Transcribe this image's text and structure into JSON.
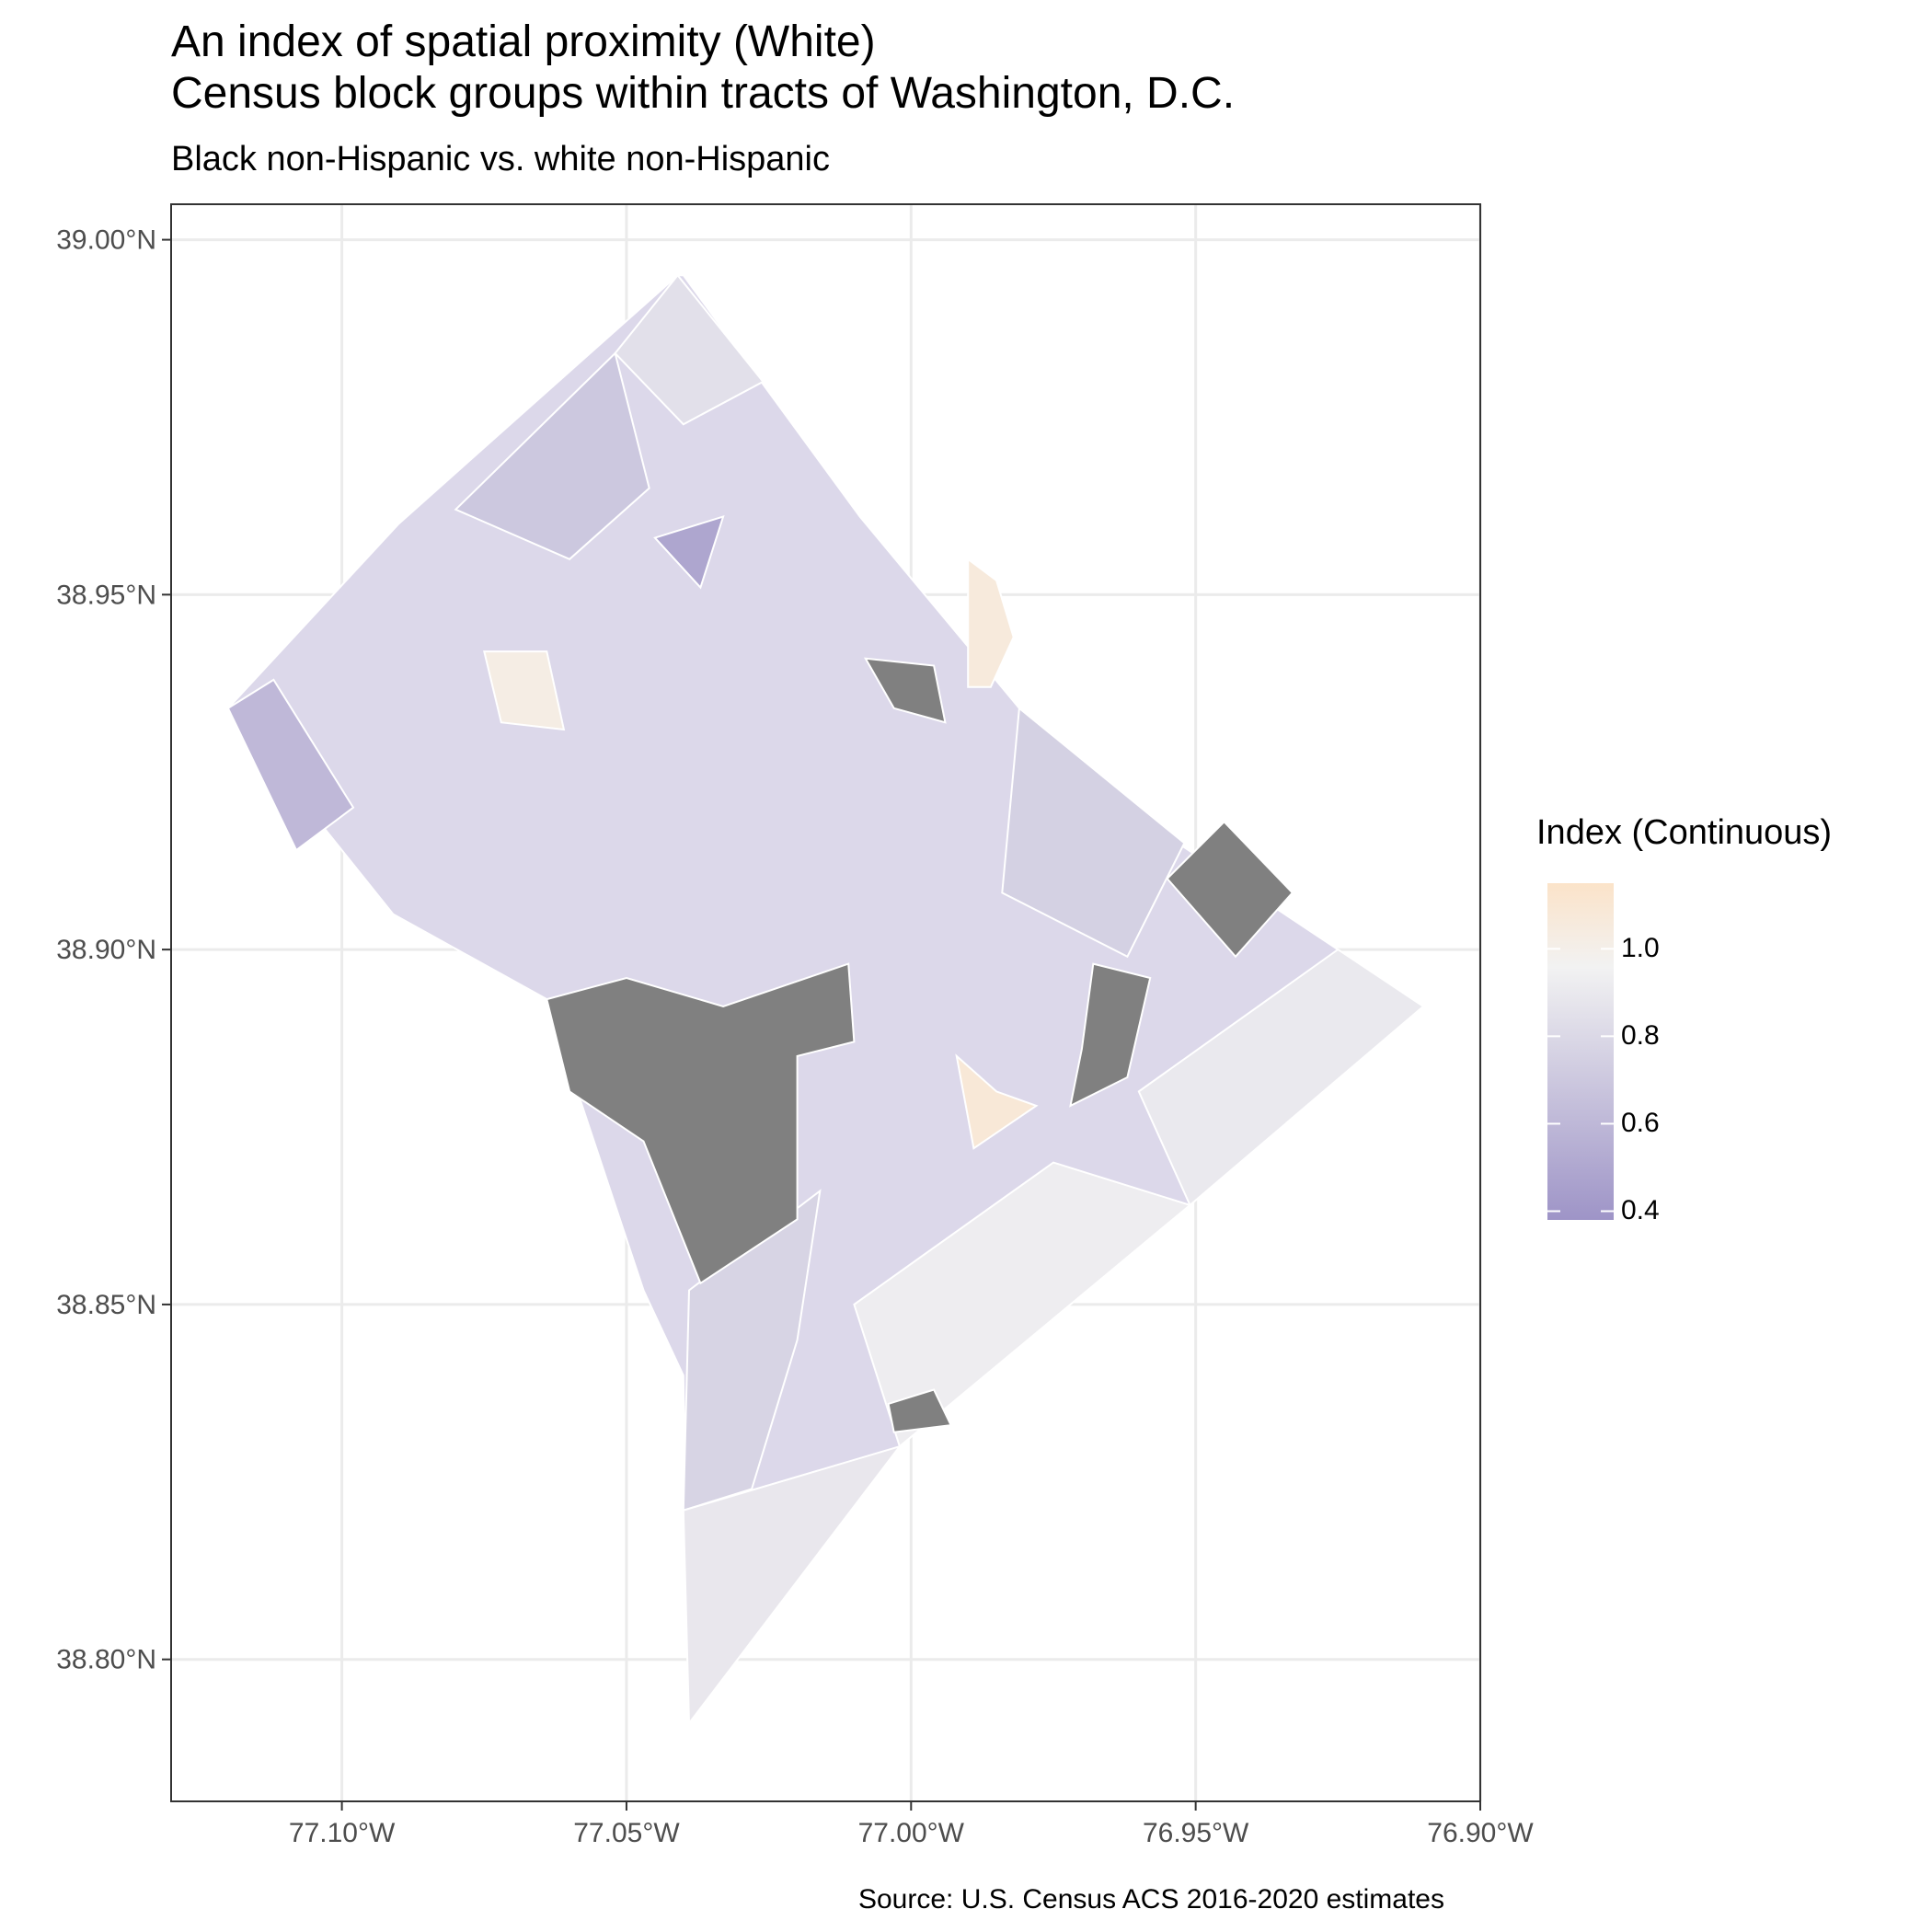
{
  "title_line1": "An index of spatial proximity (White)",
  "title_line2": "Census block groups within tracts of Washington, D.C.",
  "subtitle": "Black non-Hispanic vs. white non-Hispanic",
  "caption": "Source: U.S. Census ACS 2016-2020 estimates",
  "legend": {
    "title": "Index (Continuous)",
    "labels": [
      "1.0",
      "0.8",
      "0.6",
      "0.4"
    ],
    "label_values": [
      1.0,
      0.8,
      0.6,
      0.4
    ],
    "range": [
      0.38,
      1.15
    ],
    "colors": {
      "low": "#9e94c7",
      "mid": "#f2f2f2",
      "high": "#fbe3c9",
      "na": "#808080"
    }
  },
  "axes": {
    "x_ticks": [
      "77.10°W",
      "77.05°W",
      "77.00°W",
      "76.95°W",
      "76.90°W"
    ],
    "x_values": [
      -77.1,
      -77.05,
      -77.0,
      -76.95,
      -76.9
    ],
    "y_ticks": [
      "39.00°N",
      "38.95°N",
      "38.90°N",
      "38.85°N",
      "38.80°N"
    ],
    "y_values": [
      39.0,
      38.95,
      38.9,
      38.85,
      38.8
    ],
    "xlim": [
      -77.13,
      -76.9
    ],
    "ylim": [
      38.78,
      39.005
    ],
    "grid": true
  },
  "chart_data": {
    "type": "choropleth",
    "region": "Washington, D.C. census block groups",
    "boundary": [
      [
        -77.04,
        38.995
      ],
      [
        -77.009,
        38.961
      ],
      [
        -76.981,
        38.934
      ],
      [
        -76.97,
        38.924
      ],
      [
        -76.91,
        38.892
      ],
      [
        -76.951,
        38.864
      ],
      [
        -77.002,
        38.83
      ],
      [
        -77.039,
        38.791
      ],
      [
        -77.04,
        38.84
      ],
      [
        -77.047,
        38.852
      ],
      [
        -77.064,
        38.893
      ],
      [
        -77.091,
        38.905
      ],
      [
        -77.12,
        38.934
      ],
      [
        -77.09,
        38.96
      ],
      [
        -77.041,
        38.995
      ]
    ],
    "zones": [
      {
        "name": "northwest-tip",
        "value": 0.88,
        "poly": [
          [
            -77.041,
            38.995
          ],
          [
            -77.052,
            38.984
          ],
          [
            -77.04,
            38.974
          ],
          [
            -77.026,
            38.98
          ]
        ]
      },
      {
        "name": "upper-northwest",
        "value": 0.72,
        "poly": [
          [
            -77.052,
            38.984
          ],
          [
            -77.08,
            38.962
          ],
          [
            -77.06,
            38.955
          ],
          [
            -77.046,
            38.965
          ]
        ]
      },
      {
        "name": "west-arm",
        "value": 0.62,
        "poly": [
          [
            -77.12,
            38.934
          ],
          [
            -77.112,
            38.938
          ],
          [
            -77.098,
            38.92
          ],
          [
            -77.108,
            38.914
          ]
        ]
      },
      {
        "name": "dark-northwest",
        "value": 0.5,
        "poly": [
          [
            -77.045,
            38.958
          ],
          [
            -77.033,
            38.961
          ],
          [
            -77.037,
            38.951
          ]
        ]
      },
      {
        "name": "beige-north",
        "value": 1.08,
        "poly": [
          [
            -76.99,
            38.955
          ],
          [
            -76.985,
            38.952
          ],
          [
            -76.982,
            38.944
          ],
          [
            -76.986,
            38.937
          ],
          [
            -76.99,
            38.937
          ]
        ]
      },
      {
        "name": "beige-northwest",
        "value": 1.05,
        "poly": [
          [
            -77.075,
            38.942
          ],
          [
            -77.064,
            38.942
          ],
          [
            -77.061,
            38.931
          ],
          [
            -77.072,
            38.932
          ]
        ]
      },
      {
        "name": "east-top",
        "value": 0.78,
        "poly": [
          [
            -76.981,
            38.934
          ],
          [
            -76.952,
            38.915
          ],
          [
            -76.962,
            38.899
          ],
          [
            -76.984,
            38.908
          ]
        ]
      },
      {
        "name": "beige-center",
        "value": 1.1,
        "poly": [
          [
            -76.992,
            38.885
          ],
          [
            -76.985,
            38.88
          ],
          [
            -76.978,
            38.878
          ],
          [
            -76.989,
            38.872
          ]
        ]
      },
      {
        "name": "south-west-bank",
        "value": 0.8,
        "poly": [
          [
            -77.039,
            38.852
          ],
          [
            -77.016,
            38.866
          ],
          [
            -77.02,
            38.845
          ],
          [
            -77.028,
            38.824
          ],
          [
            -77.04,
            38.821
          ]
        ]
      },
      {
        "name": "southeast-tail",
        "value": 0.93,
        "poly": [
          [
            -77.04,
            38.821
          ],
          [
            -77.002,
            38.83
          ],
          [
            -77.039,
            38.791
          ]
        ]
      },
      {
        "name": "southeast",
        "value": 0.97,
        "poly": [
          [
            -76.951,
            38.864
          ],
          [
            -77.002,
            38.83
          ],
          [
            -77.01,
            38.85
          ],
          [
            -76.975,
            38.87
          ]
        ]
      },
      {
        "name": "east-lower",
        "value": 0.94,
        "poly": [
          [
            -76.91,
            38.892
          ],
          [
            -76.951,
            38.864
          ],
          [
            -76.96,
            38.88
          ],
          [
            -76.925,
            38.9
          ]
        ]
      },
      {
        "name": "mall-na",
        "value": null,
        "poly": [
          [
            -77.064,
            38.893
          ],
          [
            -77.05,
            38.896
          ],
          [
            -77.033,
            38.892
          ],
          [
            -77.011,
            38.898
          ],
          [
            -77.01,
            38.887
          ],
          [
            -77.02,
            38.885
          ],
          [
            -77.02,
            38.862
          ],
          [
            -77.037,
            38.853
          ],
          [
            -77.047,
            38.873
          ],
          [
            -77.06,
            38.88
          ]
        ]
      },
      {
        "name": "anacostia-na",
        "value": null,
        "poly": [
          [
            -76.968,
            38.898
          ],
          [
            -76.958,
            38.896
          ],
          [
            -76.962,
            38.882
          ],
          [
            -76.972,
            38.878
          ],
          [
            -76.97,
            38.886
          ]
        ]
      },
      {
        "name": "northeast-na",
        "value": null,
        "poly": [
          [
            -76.945,
            38.918
          ],
          [
            -76.933,
            38.908
          ],
          [
            -76.943,
            38.899
          ],
          [
            -76.955,
            38.91
          ]
        ]
      },
      {
        "name": "north-center-na",
        "value": null,
        "poly": [
          [
            -77.008,
            38.941
          ],
          [
            -76.996,
            38.94
          ],
          [
            -76.994,
            38.932
          ],
          [
            -77.003,
            38.934
          ]
        ]
      },
      {
        "name": "south-small-na",
        "value": null,
        "poly": [
          [
            -77.004,
            38.836
          ],
          [
            -76.996,
            38.838
          ],
          [
            -76.993,
            38.833
          ],
          [
            -77.003,
            38.832
          ]
        ]
      }
    ]
  }
}
